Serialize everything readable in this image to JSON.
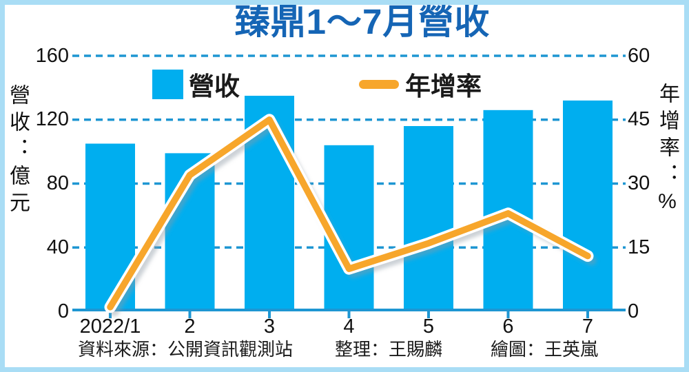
{
  "page": {
    "title": "臻鼎1～7月營收"
  },
  "legend": {
    "revenue": "營收",
    "yoy": "年增率"
  },
  "axes": {
    "left_title": "營收：億元",
    "right_title": "年增率：%",
    "left_ticks": [
      "160",
      "120",
      "80",
      "40",
      "0"
    ],
    "right_ticks": [
      "60",
      "45",
      "30",
      "15",
      "0"
    ]
  },
  "footer": {
    "source": "資料來源：公開資訊觀測站",
    "editor": "整理：王賜麟",
    "artist": "繪圖：王英嵐"
  },
  "colors": {
    "bar": "#00aeef",
    "line": "#f7a62b",
    "line_casing": "#ffffff",
    "grid": "#1e96d2",
    "axis": "#1e96d2",
    "title": "#1565b5",
    "frame": "#a9ddf5",
    "text": "#1a1a1a"
  },
  "chart_data": {
    "type": "combo",
    "title": "臻鼎1～7月營收",
    "categories": [
      "2022/1",
      "2",
      "3",
      "4",
      "5",
      "6",
      "7"
    ],
    "series": [
      {
        "name": "營收",
        "type": "bar",
        "axis": "left",
        "unit": "億元",
        "values": [
          105,
          99,
          135,
          104,
          116,
          126,
          132
        ],
        "color": "#00aeef"
      },
      {
        "name": "年增率",
        "type": "line",
        "axis": "right",
        "unit": "%",
        "values": [
          1,
          32,
          45,
          10,
          16,
          23,
          13
        ],
        "color": "#f7a62b"
      }
    ],
    "left_axis": {
      "label": "營收：億元",
      "min": 0,
      "max": 160,
      "step": 40
    },
    "right_axis": {
      "label": "年增率：%",
      "min": 0,
      "max": 60,
      "step": 15
    },
    "grid": "dashed-horizontal",
    "legend_position": "top"
  }
}
